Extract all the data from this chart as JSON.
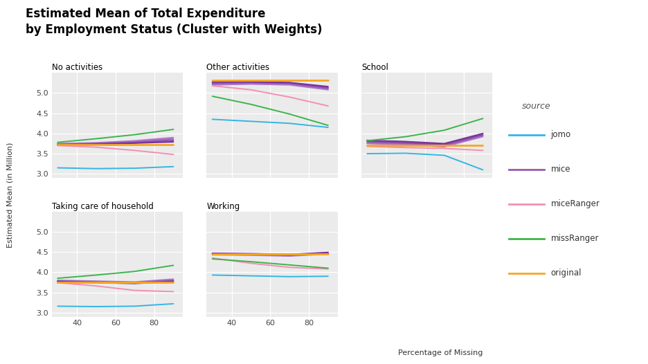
{
  "title_line1": "Estimated Mean of Total Expenditure",
  "title_line2": "by Employment Status (Cluster with Weights)",
  "xlabel": "Percentage of Missing",
  "ylabel": "Estimated Mean (in Million)",
  "x_values": [
    30,
    50,
    70,
    90
  ],
  "panels": [
    "No activities",
    "Other activities",
    "School",
    "Taking care of household",
    "Working"
  ],
  "source_colors": {
    "jomo": "#33b5e5",
    "mice1": "#b47fcc",
    "mice2": "#a56cc0",
    "mice3": "#9659b3",
    "mice4": "#8746a6",
    "mice5": "#783399",
    "miceRanger": "#f48fb1",
    "missRanger": "#3cb44b",
    "original": "#f5a623"
  },
  "legend_entries": [
    [
      "jomo",
      "#33b5e5"
    ],
    [
      "mice",
      "#9659b3"
    ],
    [
      "miceRanger",
      "#f48fb1"
    ],
    [
      "missRanger",
      "#3cb44b"
    ],
    [
      "original",
      "#f5a623"
    ]
  ],
  "bg_color": "#ebebeb",
  "data": {
    "No activities": {
      "jomo": [
        3.15,
        3.13,
        3.14,
        3.18
      ],
      "mice1": [
        3.75,
        3.77,
        3.82,
        3.9
      ],
      "mice2": [
        3.74,
        3.76,
        3.8,
        3.87
      ],
      "mice3": [
        3.73,
        3.75,
        3.78,
        3.84
      ],
      "mice4": [
        3.72,
        3.74,
        3.77,
        3.81
      ],
      "mice5": [
        3.71,
        3.73,
        3.76,
        3.79
      ],
      "miceRanger": [
        3.7,
        3.66,
        3.58,
        3.48
      ],
      "missRanger": [
        3.78,
        3.87,
        3.97,
        4.1
      ],
      "original": [
        3.72,
        3.72,
        3.72,
        3.72
      ]
    },
    "Other activities": {
      "jomo": [
        4.35,
        4.3,
        4.25,
        4.15
      ],
      "mice1": [
        5.2,
        5.22,
        5.2,
        5.08
      ],
      "mice2": [
        5.22,
        5.24,
        5.22,
        5.1
      ],
      "mice3": [
        5.24,
        5.26,
        5.24,
        5.12
      ],
      "mice4": [
        5.26,
        5.27,
        5.25,
        5.14
      ],
      "mice5": [
        5.28,
        5.28,
        5.26,
        5.16
      ],
      "miceRanger": [
        5.18,
        5.08,
        4.9,
        4.68
      ],
      "missRanger": [
        4.92,
        4.72,
        4.48,
        4.2
      ],
      "original": [
        5.32,
        5.32,
        5.32,
        5.32
      ]
    },
    "School": {
      "jomo": [
        3.5,
        3.51,
        3.46,
        3.1
      ],
      "mice1": [
        3.75,
        3.72,
        3.67,
        3.92
      ],
      "mice2": [
        3.77,
        3.74,
        3.69,
        3.94
      ],
      "mice3": [
        3.79,
        3.76,
        3.71,
        3.96
      ],
      "mice4": [
        3.81,
        3.78,
        3.73,
        3.98
      ],
      "mice5": [
        3.83,
        3.8,
        3.75,
        4.0
      ],
      "miceRanger": [
        3.68,
        3.65,
        3.63,
        3.58
      ],
      "missRanger": [
        3.82,
        3.92,
        4.08,
        4.37
      ],
      "original": [
        3.7,
        3.7,
        3.7,
        3.7
      ]
    },
    "Taking care of household": {
      "jomo": [
        3.16,
        3.15,
        3.16,
        3.22
      ],
      "mice1": [
        3.8,
        3.78,
        3.76,
        3.83
      ],
      "mice2": [
        3.79,
        3.77,
        3.75,
        3.81
      ],
      "mice3": [
        3.78,
        3.76,
        3.74,
        3.79
      ],
      "mice4": [
        3.77,
        3.75,
        3.73,
        3.78
      ],
      "mice5": [
        3.76,
        3.74,
        3.72,
        3.77
      ],
      "miceRanger": [
        3.74,
        3.66,
        3.55,
        3.52
      ],
      "missRanger": [
        3.85,
        3.93,
        4.02,
        4.17
      ],
      "original": [
        3.75,
        3.75,
        3.75,
        3.75
      ]
    },
    "Working": {
      "jomo": [
        3.93,
        3.91,
        3.89,
        3.9
      ],
      "mice1": [
        4.43,
        4.42,
        4.4,
        4.45
      ],
      "mice2": [
        4.44,
        4.43,
        4.41,
        4.46
      ],
      "mice3": [
        4.45,
        4.44,
        4.42,
        4.47
      ],
      "mice4": [
        4.46,
        4.45,
        4.43,
        4.48
      ],
      "mice5": [
        4.47,
        4.46,
        4.44,
        4.49
      ],
      "miceRanger": [
        4.35,
        4.22,
        4.12,
        4.08
      ],
      "missRanger": [
        4.33,
        4.26,
        4.18,
        4.1
      ],
      "original": [
        4.45,
        4.45,
        4.45,
        4.45
      ]
    }
  },
  "ylim": [
    2.9,
    5.5
  ],
  "yticks": [
    3.0,
    3.5,
    4.0,
    4.5,
    5.0
  ],
  "xlim": [
    27,
    95
  ],
  "xticks": [
    40,
    60,
    80
  ],
  "xticklabels": [
    "40",
    "60",
    "80"
  ]
}
